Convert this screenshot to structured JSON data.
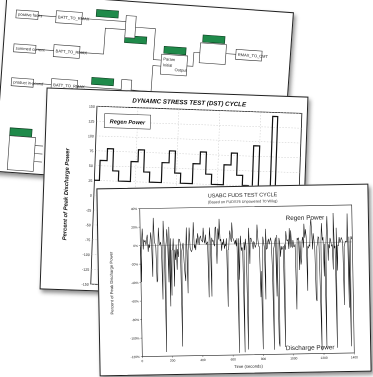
{
  "colors": {
    "block_fill": "#1f8a4a",
    "block_stroke": "#0d3d20",
    "trace": "#111111",
    "regen_box_border": "#444444"
  },
  "block_diagram": {
    "inputs": [
      "positive faces",
      "summed current",
      "product in-pound"
    ],
    "blocks": [
      "BATT_TO_RMAX",
      "BATT_TO_RMAX",
      "BATT_TO_RMAX"
    ],
    "outputs": [
      "RMAX_TO_CMT"
    ],
    "ports": [
      "Param",
      "Initial",
      "Output"
    ]
  },
  "dst_chart": {
    "title": "DYNAMIC STRESS TEST (DST) CYCLE",
    "legend_box": "Regen Power",
    "ylabel": "Percent of Peak Discharge Power",
    "y_ticks": [
      "150",
      "125",
      "100",
      "75",
      "50",
      "25",
      "0",
      "-25",
      "-50",
      "-75",
      "-100",
      "-125",
      "-150"
    ]
  },
  "fuds_chart": {
    "title": "USABC FUDS TEST CYCLE",
    "subtitle": "(Based on FUDS76 Unpowered 70 W/kg)",
    "annotation_top": "Regen Power",
    "annotation_bottom": "Discharge Power",
    "ylabel": "Percent of Peak Discharge Power",
    "xlabel": "Time (seconds)",
    "y_ticks": [
      "40%",
      "20%",
      "0%",
      "-20%",
      "-40%",
      "-60%",
      "-80%",
      "-100%",
      "-120%"
    ],
    "x_ticks": [
      "0",
      "200",
      "400",
      "600",
      "800",
      "1000",
      "1200",
      "1400"
    ]
  }
}
